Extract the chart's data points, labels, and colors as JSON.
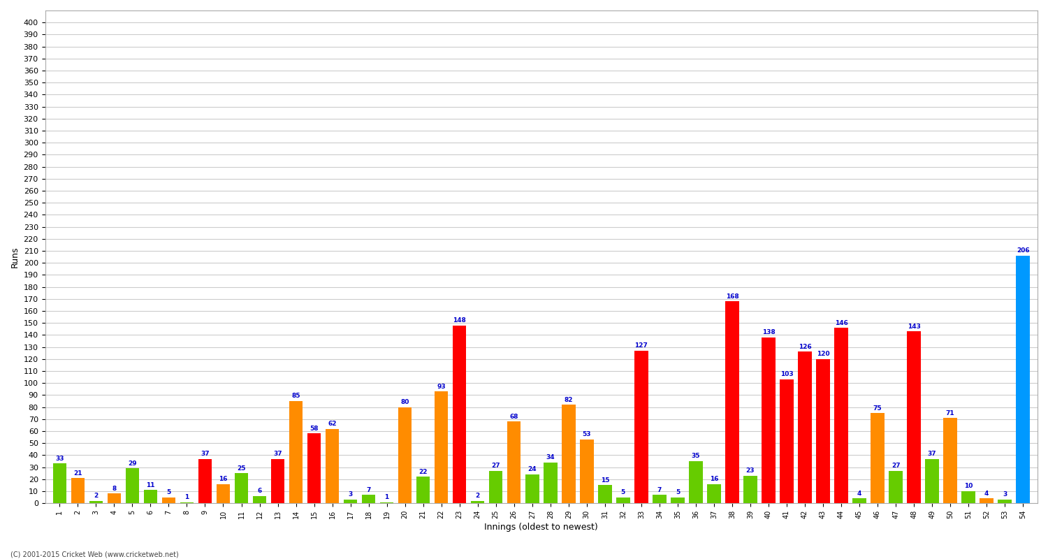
{
  "xlabel": "Innings (oldest to newest)",
  "ylabel": "Runs",
  "innings_labels": [
    "1",
    "2",
    "3",
    "4",
    "5",
    "6",
    "7",
    "8",
    "9",
    "10",
    "11",
    "12",
    "13",
    "14",
    "15",
    "16",
    "17",
    "18",
    "19",
    "20",
    "21",
    "22",
    "23",
    "24",
    "25",
    "26",
    "27",
    "28",
    "29",
    "30",
    "31",
    "32",
    "33",
    "34",
    "35",
    "36",
    "37",
    "38",
    "39",
    "40",
    "41",
    "42",
    "43",
    "44",
    "45",
    "46",
    "47",
    "48",
    "49",
    "50",
    "51",
    "52",
    "53",
    "54"
  ],
  "scores": [
    33,
    21,
    2,
    8,
    29,
    11,
    5,
    1,
    37,
    16,
    25,
    6,
    37,
    85,
    58,
    62,
    3,
    7,
    1,
    80,
    22,
    93,
    148,
    2,
    27,
    68,
    24,
    34,
    82,
    53,
    15,
    5,
    127,
    7,
    5,
    35,
    16,
    168,
    23,
    138,
    103,
    126,
    120,
    146,
    4,
    75,
    27,
    143,
    37,
    71,
    10,
    4,
    3,
    206
  ],
  "colors": [
    "#66cc00",
    "#ff8c00",
    "#66cc00",
    "#ff8c00",
    "#66cc00",
    "#66cc00",
    "#ff8c00",
    "#66cc00",
    "#ff0000",
    "#ff8c00",
    "#66cc00",
    "#66cc00",
    "#ff0000",
    "#ff8c00",
    "#ff0000",
    "#ff8c00",
    "#66cc00",
    "#66cc00",
    "#66cc00",
    "#ff8c00",
    "#66cc00",
    "#ff8c00",
    "#ff0000",
    "#66cc00",
    "#66cc00",
    "#ff8c00",
    "#66cc00",
    "#66cc00",
    "#ff8c00",
    "#ff8c00",
    "#66cc00",
    "#66cc00",
    "#ff0000",
    "#66cc00",
    "#66cc00",
    "#66cc00",
    "#66cc00",
    "#ff0000",
    "#66cc00",
    "#ff0000",
    "#ff0000",
    "#ff0000",
    "#ff0000",
    "#ff0000",
    "#66cc00",
    "#ff8c00",
    "#66cc00",
    "#ff0000",
    "#66cc00",
    "#ff8c00",
    "#66cc00",
    "#ff8c00",
    "#66cc00",
    "#0099ff"
  ],
  "ylim": [
    0,
    410
  ],
  "yticks": [
    0,
    10,
    20,
    30,
    40,
    50,
    60,
    70,
    80,
    90,
    100,
    110,
    120,
    130,
    140,
    150,
    160,
    170,
    180,
    190,
    200,
    210,
    220,
    230,
    240,
    250,
    260,
    270,
    280,
    290,
    300,
    310,
    320,
    330,
    340,
    350,
    360,
    370,
    380,
    390,
    400
  ],
  "background_color": "#ffffff",
  "grid_color": "#cccccc",
  "label_color": "#0000cc",
  "bar_width": 0.75,
  "footnote": "(C) 2001-2015 Cricket Web (www.cricketweb.net)"
}
